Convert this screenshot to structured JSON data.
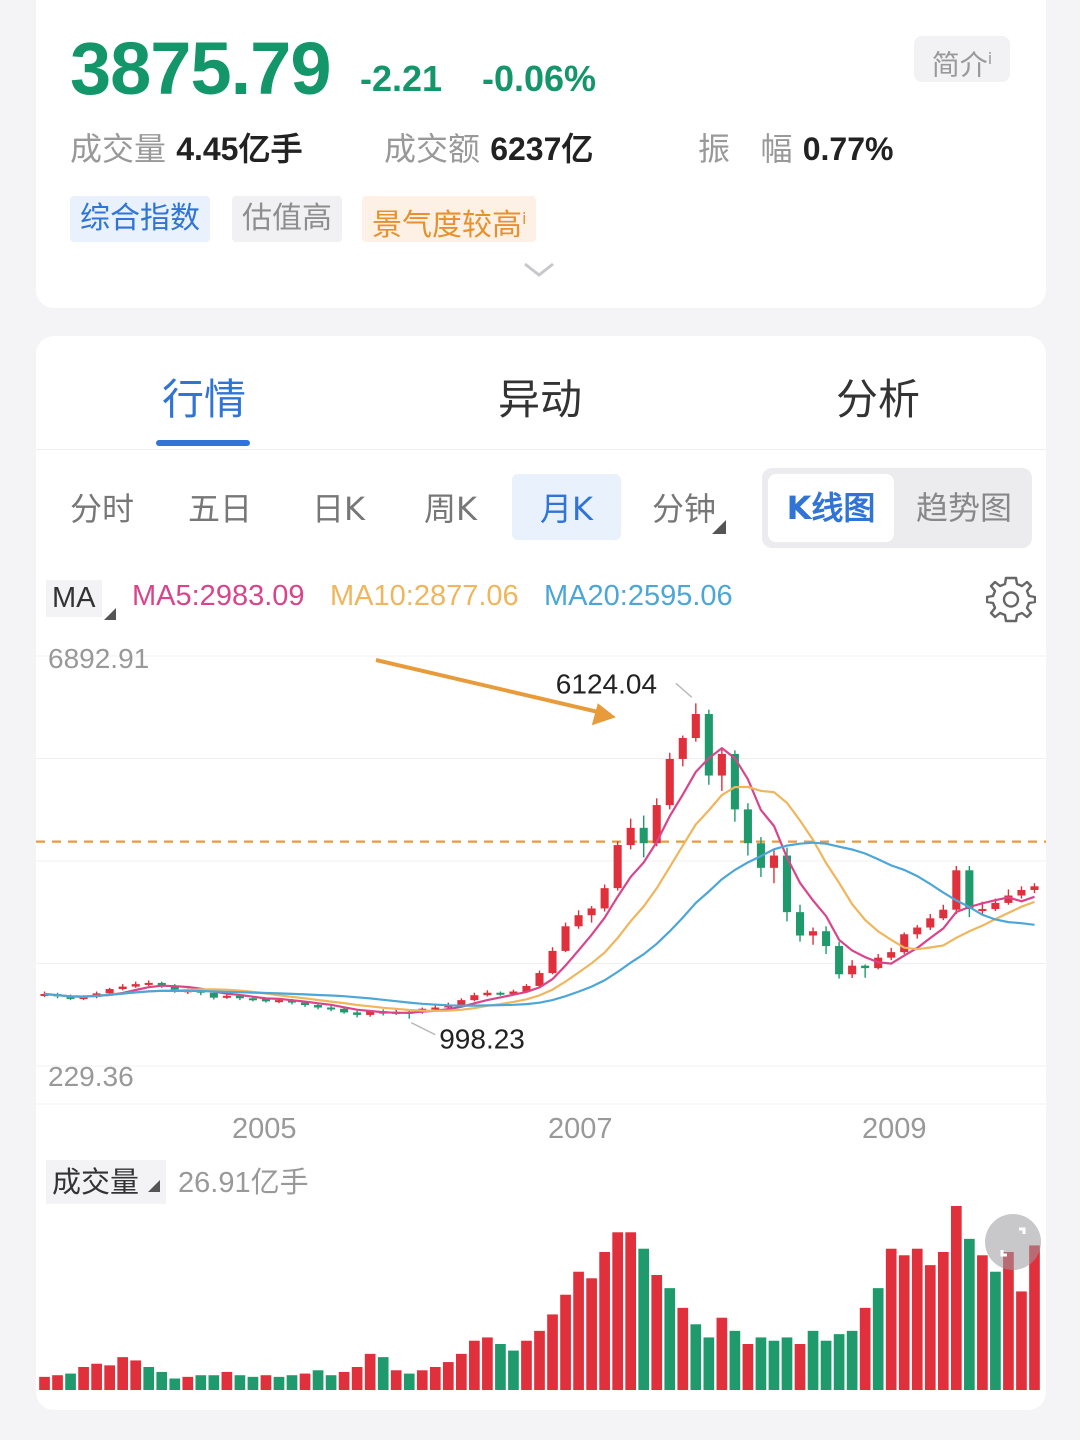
{
  "quote": {
    "price": "3875.79",
    "change": "-2.21",
    "change_pct": "-0.06%",
    "intro_label": "简介",
    "info_mark": "i",
    "volume_label": "成交量",
    "volume_value": "4.45亿手",
    "turnover_label": "成交额",
    "turnover_value": "6237亿",
    "amplitude_label_1": "振",
    "amplitude_label_2": "幅",
    "amplitude_value": "0.77%",
    "tags": [
      "综合指数",
      "估值高",
      "景气度较高"
    ]
  },
  "tabs": [
    "行情",
    "异动",
    "分析"
  ],
  "active_tab": 0,
  "periods": [
    "分时",
    "五日",
    "日K",
    "周K",
    "月K",
    "分钟"
  ],
  "active_period": 4,
  "chart_modes": [
    "K线图",
    "趋势图"
  ],
  "active_mode": 0,
  "ma": {
    "button": "MA",
    "ma5": "MA5:2983.09",
    "ma10": "MA10:2877.06",
    "ma20": "MA20:2595.06"
  },
  "colors": {
    "up": "#e0303c",
    "down": "#1f9a6c",
    "ma5": "#d9458b",
    "ma10": "#efb65d",
    "ma20": "#4da6d8",
    "accent": "#2f74d6",
    "ref_line": "#e89b3a"
  },
  "chart_data": {
    "type": "candlestick",
    "y_max_label": "6892.91",
    "y_min_label": "229.36",
    "ylim": [
      229.36,
      6892.91
    ],
    "high_marker": "6124.04",
    "low_marker": "998.23",
    "x_tick_labels": [
      "2005",
      "2007",
      "2009"
    ],
    "reference_level": 3875.79,
    "candles": [
      [
        1380,
        1400,
        1440,
        1350
      ],
      [
        1400,
        1360,
        1420,
        1330
      ],
      [
        1360,
        1320,
        1390,
        1300
      ],
      [
        1320,
        1350,
        1380,
        1300
      ],
      [
        1350,
        1410,
        1440,
        1330
      ],
      [
        1410,
        1480,
        1500,
        1390
      ],
      [
        1480,
        1520,
        1560,
        1460
      ],
      [
        1520,
        1560,
        1600,
        1500
      ],
      [
        1560,
        1580,
        1620,
        1530
      ],
      [
        1580,
        1530,
        1600,
        1500
      ],
      [
        1530,
        1440,
        1560,
        1420
      ],
      [
        1440,
        1460,
        1490,
        1400
      ],
      [
        1460,
        1420,
        1480,
        1380
      ],
      [
        1420,
        1340,
        1450,
        1310
      ],
      [
        1340,
        1370,
        1400,
        1320
      ],
      [
        1370,
        1330,
        1390,
        1300
      ],
      [
        1330,
        1320,
        1360,
        1280
      ],
      [
        1320,
        1280,
        1340,
        1260
      ],
      [
        1280,
        1300,
        1330,
        1250
      ],
      [
        1300,
        1260,
        1320,
        1230
      ],
      [
        1260,
        1220,
        1280,
        1190
      ],
      [
        1220,
        1180,
        1250,
        1150
      ],
      [
        1180,
        1160,
        1210,
        1120
      ],
      [
        1160,
        1100,
        1190,
        1080
      ],
      [
        1100,
        1060,
        1130,
        1020
      ],
      [
        1060,
        1120,
        1140,
        1030
      ],
      [
        1120,
        1080,
        1150,
        1050
      ],
      [
        1080,
        1110,
        1150,
        1060
      ],
      [
        1110,
        1100,
        1130,
        998
      ],
      [
        1100,
        1160,
        1180,
        1080
      ],
      [
        1160,
        1180,
        1220,
        1140
      ],
      [
        1180,
        1220,
        1260,
        1160
      ],
      [
        1220,
        1300,
        1330,
        1200
      ],
      [
        1300,
        1380,
        1420,
        1280
      ],
      [
        1380,
        1420,
        1460,
        1360
      ],
      [
        1420,
        1400,
        1440,
        1370
      ],
      [
        1400,
        1440,
        1470,
        1380
      ],
      [
        1440,
        1530,
        1560,
        1420
      ],
      [
        1530,
        1740,
        1780,
        1510
      ],
      [
        1740,
        2100,
        2160,
        1720
      ],
      [
        2100,
        2500,
        2560,
        2080
      ],
      [
        2500,
        2680,
        2760,
        2460
      ],
      [
        2680,
        2790,
        2830,
        2560
      ],
      [
        2790,
        3120,
        3180,
        2740
      ],
      [
        3120,
        3820,
        3880,
        3080
      ],
      [
        3820,
        4100,
        4250,
        3750
      ],
      [
        4100,
        3850,
        4300,
        3620
      ],
      [
        3850,
        4470,
        4580,
        3800
      ],
      [
        4470,
        5220,
        5320,
        4400
      ],
      [
        5220,
        5560,
        5600,
        5100
      ],
      [
        5560,
        5950,
        6124,
        5500
      ],
      [
        5950,
        4950,
        6020,
        4800
      ],
      [
        4950,
        5300,
        5400,
        4700
      ],
      [
        5300,
        4400,
        5360,
        4200
      ],
      [
        4400,
        3850,
        4500,
        3650
      ],
      [
        3850,
        3450,
        3950,
        3300
      ],
      [
        3450,
        3650,
        3750,
        3200
      ],
      [
        3650,
        2730,
        3780,
        2580
      ],
      [
        2730,
        2350,
        2850,
        2250
      ],
      [
        2350,
        2420,
        2480,
        2200
      ],
      [
        2420,
        2180,
        2500,
        2050
      ],
      [
        2180,
        1720,
        2250,
        1650
      ],
      [
        1720,
        1860,
        1950,
        1660
      ],
      [
        1860,
        1820,
        1880,
        1664
      ],
      [
        1820,
        1990,
        2050,
        1800
      ],
      [
        1990,
        2080,
        2150,
        1950
      ],
      [
        2080,
        2370,
        2400,
        2050
      ],
      [
        2370,
        2480,
        2520,
        2300
      ],
      [
        2480,
        2630,
        2700,
        2440
      ],
      [
        2630,
        2770,
        2850,
        2600
      ],
      [
        2770,
        3410,
        3480,
        2700
      ],
      [
        3410,
        2780,
        3480,
        2650
      ],
      [
        2780,
        2780,
        2900,
        2700
      ],
      [
        2780,
        2880,
        2950,
        2750
      ],
      [
        2880,
        3000,
        3100,
        2850
      ],
      [
        3000,
        3090,
        3150,
        2950
      ],
      [
        3090,
        3150,
        3200,
        3040
      ]
    ],
    "volume_label": "成交量",
    "volume_value": "26.91亿手",
    "volume": [
      [
        8,
        1
      ],
      [
        9,
        1
      ],
      [
        10,
        0
      ],
      [
        14,
        1
      ],
      [
        16,
        1
      ],
      [
        15,
        1
      ],
      [
        20,
        1
      ],
      [
        18,
        1
      ],
      [
        14,
        0
      ],
      [
        11,
        0
      ],
      [
        7,
        0
      ],
      [
        8,
        1
      ],
      [
        9,
        0
      ],
      [
        9,
        0
      ],
      [
        11,
        1
      ],
      [
        9,
        0
      ],
      [
        8,
        0
      ],
      [
        9,
        1
      ],
      [
        8,
        0
      ],
      [
        9,
        0
      ],
      [
        10,
        1
      ],
      [
        12,
        0
      ],
      [
        9,
        0
      ],
      [
        11,
        1
      ],
      [
        14,
        1
      ],
      [
        22,
        1
      ],
      [
        20,
        0
      ],
      [
        12,
        1
      ],
      [
        10,
        0
      ],
      [
        12,
        1
      ],
      [
        14,
        1
      ],
      [
        17,
        1
      ],
      [
        22,
        1
      ],
      [
        30,
        1
      ],
      [
        32,
        1
      ],
      [
        28,
        0
      ],
      [
        24,
        0
      ],
      [
        30,
        1
      ],
      [
        36,
        1
      ],
      [
        46,
        1
      ],
      [
        58,
        1
      ],
      [
        72,
        1
      ],
      [
        68,
        1
      ],
      [
        84,
        1
      ],
      [
        96,
        1
      ],
      [
        96,
        1
      ],
      [
        86,
        0
      ],
      [
        70,
        1
      ],
      [
        62,
        0
      ],
      [
        50,
        1
      ],
      [
        40,
        0
      ],
      [
        32,
        0
      ],
      [
        44,
        1
      ],
      [
        36,
        0
      ],
      [
        28,
        1
      ],
      [
        32,
        0
      ],
      [
        30,
        0
      ],
      [
        32,
        0
      ],
      [
        28,
        1
      ],
      [
        36,
        0
      ],
      [
        30,
        0
      ],
      [
        34,
        0
      ],
      [
        36,
        0
      ],
      [
        50,
        1
      ],
      [
        62,
        0
      ],
      [
        86,
        1
      ],
      [
        82,
        1
      ],
      [
        86,
        1
      ],
      [
        76,
        1
      ],
      [
        84,
        1
      ],
      [
        112,
        1
      ],
      [
        92,
        0
      ],
      [
        82,
        1
      ],
      [
        72,
        0
      ],
      [
        84,
        1
      ],
      [
        60,
        1
      ],
      [
        88,
        1
      ]
    ]
  }
}
